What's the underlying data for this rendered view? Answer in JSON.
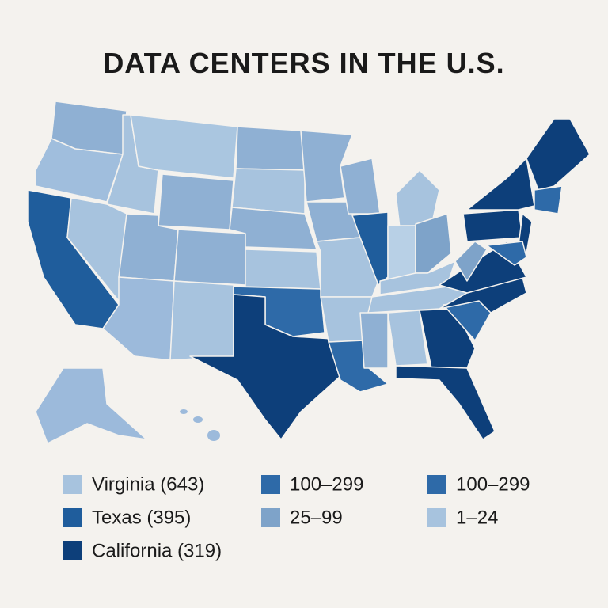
{
  "title": "DATA CENTERS IN THE U.S.",
  "legend": {
    "columns": [
      [
        {
          "label": "Virginia (643)",
          "color": "#a7c3de"
        },
        {
          "label": "Texas (395)",
          "color": "#1f5d9c"
        },
        {
          "label": "California (319)",
          "color": "#0d3f7a"
        }
      ],
      [
        {
          "label": "100–299",
          "color": "#2e6aa8"
        },
        {
          "label": "25–99",
          "color": "#7ea3c9"
        }
      ],
      [
        {
          "label": "100–299",
          "color": "#2e6aa8"
        },
        {
          "label": "1–24",
          "color": "#a7c3de"
        }
      ]
    ]
  }
}
